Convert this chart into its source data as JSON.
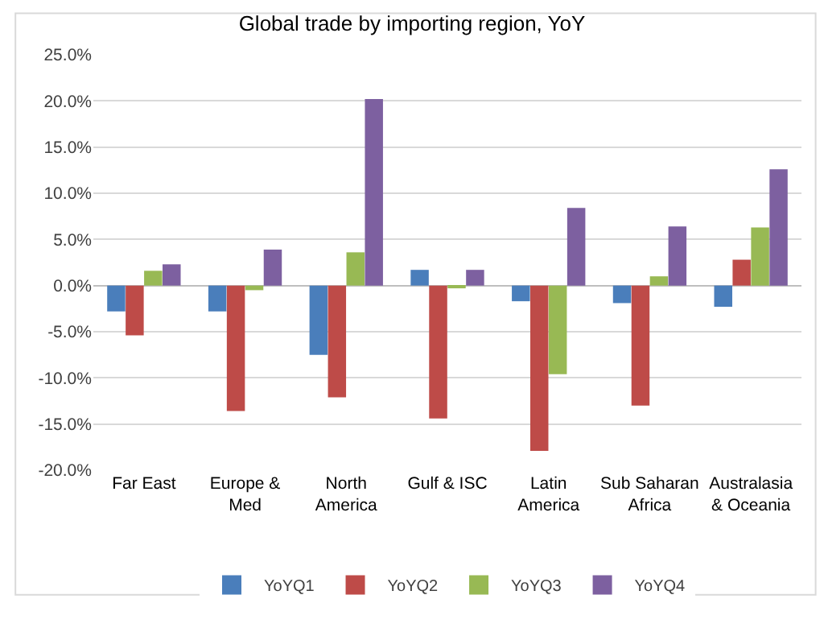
{
  "chart_data": {
    "type": "bar",
    "title": "Global trade by importing region, YoY",
    "categories": [
      "Far East",
      "Europe & Med",
      "North America",
      "Gulf & ISC",
      "Latin America",
      "Sub Saharan Africa",
      "Australasia & Oceania"
    ],
    "series": [
      {
        "name": "YoYQ1",
        "color": "#4a7ebb",
        "values": [
          -2.8,
          -2.8,
          -7.5,
          1.7,
          -1.7,
          -1.9,
          -2.3
        ]
      },
      {
        "name": "YoYQ2",
        "color": "#be4b48",
        "values": [
          -5.4,
          -13.6,
          -12.1,
          -14.4,
          -17.9,
          -13.0,
          2.8
        ]
      },
      {
        "name": "YoYQ3",
        "color": "#98b954",
        "values": [
          1.6,
          -0.5,
          3.6,
          -0.3,
          -9.6,
          1.0,
          6.3
        ]
      },
      {
        "name": "YoYQ4",
        "color": "#7d60a0",
        "values": [
          2.3,
          3.9,
          20.2,
          1.7,
          8.4,
          6.4,
          12.6
        ]
      }
    ],
    "ylim": [
      -20,
      25
    ],
    "yticks": [
      {
        "value": -20,
        "label": "-20.0%"
      },
      {
        "value": -15,
        "label": "-15.0%"
      },
      {
        "value": -10,
        "label": "-10.0%"
      },
      {
        "value": -5,
        "label": "-5.0%"
      },
      {
        "value": 0,
        "label": "0.0%"
      },
      {
        "value": 5,
        "label": "5.0%"
      },
      {
        "value": 10,
        "label": "10.0%"
      },
      {
        "value": 15,
        "label": "15.0%"
      },
      {
        "value": 20,
        "label": "20.0%"
      },
      {
        "value": 25,
        "label": "25.0%"
      }
    ],
    "grid": "y",
    "legend": "bottom"
  }
}
